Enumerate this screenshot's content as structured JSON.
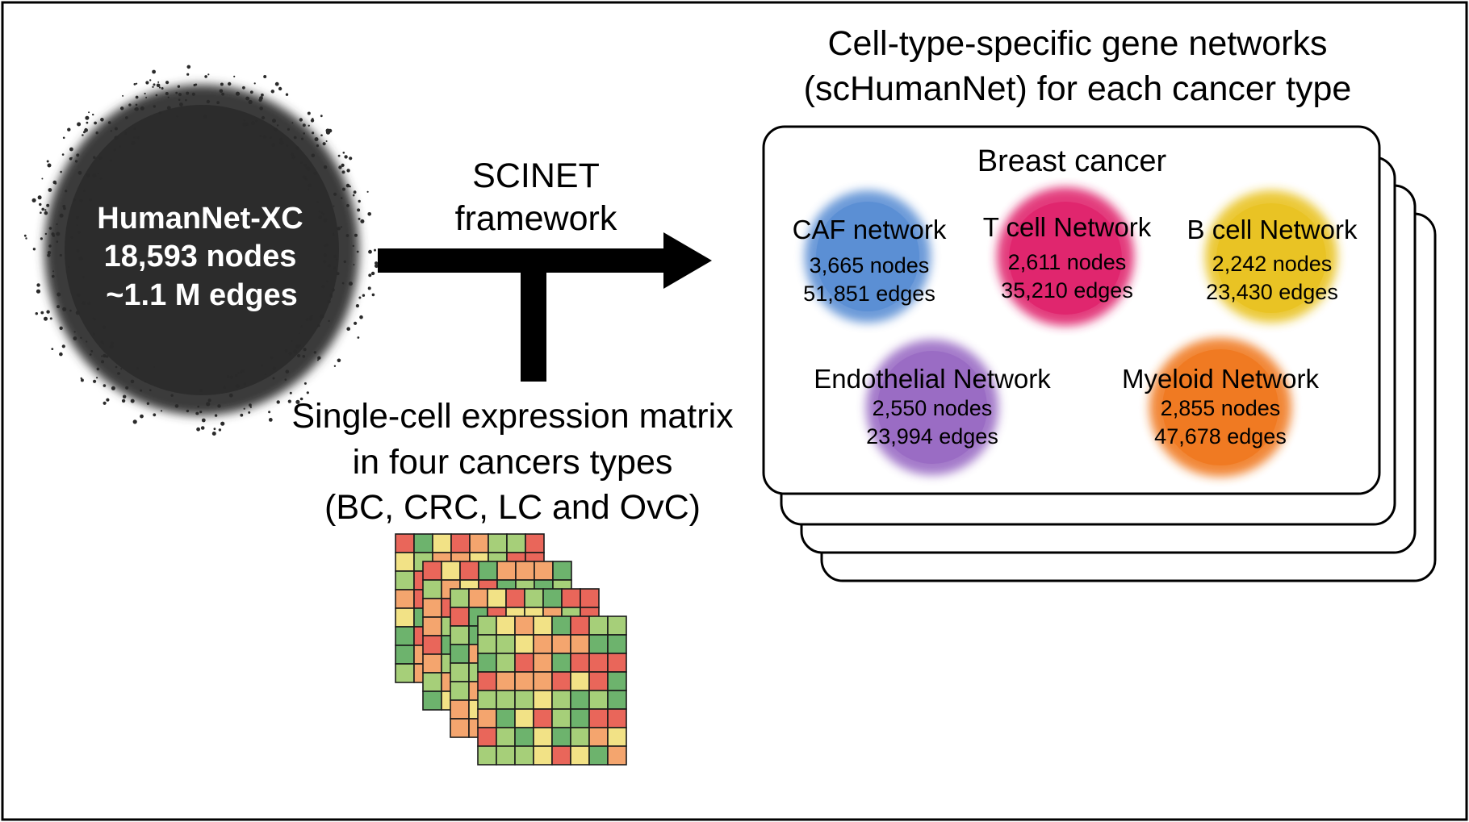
{
  "source_network": {
    "name": "HumanNet-XC",
    "nodes": "18,593 nodes",
    "edges": "~1.1 M edges"
  },
  "framework": {
    "line1": "SCINET",
    "line2": "framework"
  },
  "input": {
    "line1": "Single-cell expression matrix",
    "line2": "in four cancers types",
    "line3": "(BC, CRC, LC and OvC)"
  },
  "output": {
    "title_line1": "Cell-type-specific gene networks",
    "title_line2": "(scHumanNet) for each cancer type",
    "cancer_label": "Breast cancer",
    "networks": [
      {
        "label": "CAF network",
        "nodes": "3,665 nodes",
        "edges": "51,851 edges",
        "color": "#5b8fd4"
      },
      {
        "label": "T cell Network",
        "nodes": "2,611 nodes",
        "edges": "35,210 edges",
        "color": "#e0266e"
      },
      {
        "label": "B cell Network",
        "nodes": "2,242 nodes",
        "edges": "23,430 edges",
        "color": "#e9c324"
      },
      {
        "label": "Endothelial Network",
        "nodes": "2,550 nodes",
        "edges": "23,994 edges",
        "color": "#9a6cc4"
      },
      {
        "label": "Myeloid Network",
        "nodes": "2,855 nodes",
        "edges": "47,678 edges",
        "color": "#f07a22"
      }
    ]
  },
  "heatmap_colors": [
    "#6db36d",
    "#a6cf79",
    "#f2e286",
    "#f4a56e",
    "#e9665a"
  ]
}
